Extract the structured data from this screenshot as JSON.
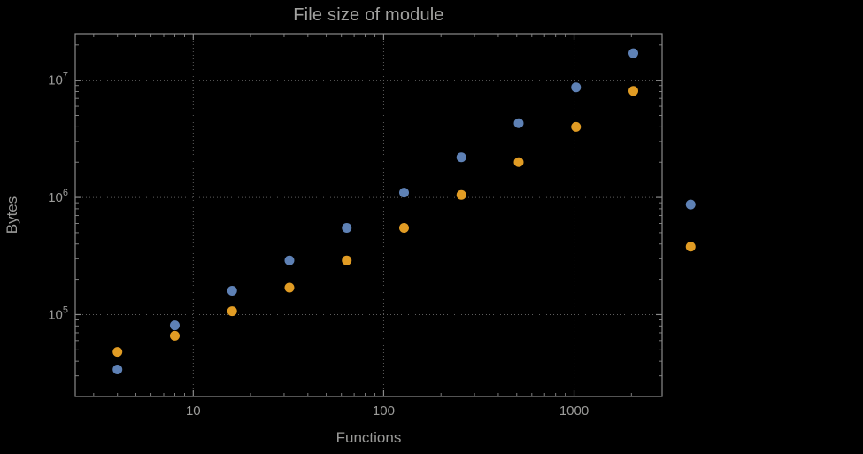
{
  "page": {
    "background": "#000000"
  },
  "style": {
    "frame_color": "#8a8a8a",
    "grid_color": "#5e5e5e",
    "text_color": "#9b9b99",
    "point_radius": 5.5,
    "series_blue": "#5E81B5",
    "series_orange": "#E19C24"
  },
  "chart_data": {
    "type": "scatter",
    "title": "File size of module",
    "xlabel": "Functions",
    "ylabel": "Bytes",
    "xscale": "log",
    "yscale": "log",
    "xlim": [
      2.4,
      2900
    ],
    "ylim": [
      20000,
      25000000
    ],
    "grid": "dotted lines at major ticks, both axes",
    "legend": "none",
    "frame": "full frame with inward ticks on all four sides",
    "x": [
      4,
      8,
      16,
      32,
      64,
      128,
      256,
      512,
      1024,
      2048,
      4096
    ],
    "series": [
      {
        "name": "series-blue",
        "color": "#5E81B5",
        "values": [
          34000,
          81000,
          160000,
          290000,
          550000,
          1100000,
          2200000,
          4300000,
          8700000,
          17000000,
          870000
        ]
      },
      {
        "name": "series-orange",
        "color": "#E19C24",
        "values": [
          48000,
          66000,
          107000,
          170000,
          290000,
          550000,
          1050000,
          2000000,
          4000000,
          8100000,
          380000
        ]
      }
    ],
    "x_ticks": {
      "values": [
        10,
        100,
        1000
      ],
      "labels": [
        "10",
        "100",
        "1000"
      ]
    },
    "y_ticks": {
      "values": [
        100000,
        1000000,
        10000000
      ],
      "labels": [
        "10⁵",
        "10⁶",
        "10⁷"
      ],
      "base": "10",
      "exponents": [
        "5",
        "6",
        "7"
      ]
    },
    "note": "points for largest x value are drawn outside the right frame edge (no clipping)"
  }
}
